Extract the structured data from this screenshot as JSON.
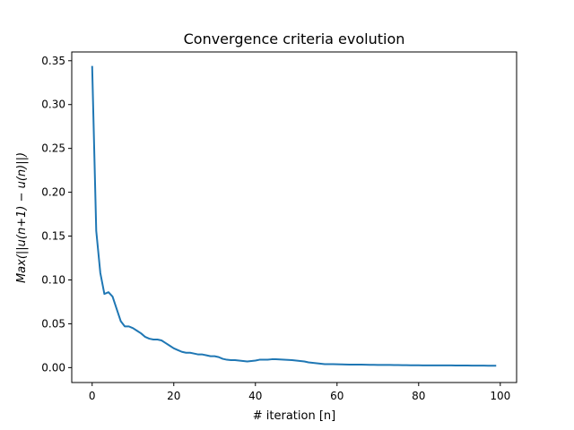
{
  "chart_data": {
    "type": "line",
    "title": "Convergence criteria evolution",
    "xlabel": "# iteration [n]",
    "ylabel": "Max(||u(n+1) − u(n)||)",
    "xlim": [
      -5,
      104
    ],
    "ylim": [
      -0.017,
      0.36
    ],
    "grid": false,
    "x_ticks": [
      0,
      20,
      40,
      60,
      80,
      100
    ],
    "x_tick_labels": [
      "0",
      "20",
      "40",
      "60",
      "80",
      "100"
    ],
    "y_ticks": [
      0.0,
      0.05,
      0.1,
      0.15,
      0.2,
      0.25,
      0.3,
      0.35
    ],
    "y_tick_labels": [
      "0.00",
      "0.05",
      "0.10",
      "0.15",
      "0.20",
      "0.25",
      "0.30",
      "0.35"
    ],
    "series": [
      {
        "color": "#1f77b4",
        "x": [
          0,
          1,
          2,
          3,
          4,
          5,
          6,
          7,
          8,
          9,
          10,
          11,
          12,
          13,
          14,
          15,
          16,
          17,
          18,
          19,
          20,
          21,
          22,
          23,
          24,
          25,
          26,
          27,
          28,
          29,
          30,
          31,
          32,
          33,
          34,
          35,
          36,
          37,
          38,
          39,
          40,
          41,
          42,
          43,
          44,
          45,
          46,
          47,
          48,
          49,
          50,
          51,
          52,
          53,
          54,
          55,
          56,
          57,
          58,
          59,
          60,
          61,
          62,
          63,
          64,
          65,
          66,
          67,
          68,
          69,
          70,
          71,
          72,
          73,
          74,
          75,
          76,
          77,
          78,
          79,
          80,
          81,
          82,
          83,
          84,
          85,
          86,
          87,
          88,
          89,
          90,
          91,
          92,
          93,
          94,
          95,
          96,
          97,
          98,
          99
        ],
        "y": [
          0.344,
          0.156,
          0.108,
          0.084,
          0.086,
          0.081,
          0.067,
          0.053,
          0.047,
          0.047,
          0.045,
          0.042,
          0.039,
          0.035,
          0.033,
          0.032,
          0.032,
          0.031,
          0.028,
          0.025,
          0.022,
          0.02,
          0.018,
          0.017,
          0.017,
          0.016,
          0.015,
          0.015,
          0.014,
          0.013,
          0.013,
          0.012,
          0.01,
          0.009,
          0.0085,
          0.0085,
          0.008,
          0.0075,
          0.007,
          0.0075,
          0.008,
          0.009,
          0.009,
          0.009,
          0.0095,
          0.0095,
          0.0093,
          0.009,
          0.0088,
          0.0085,
          0.008,
          0.0075,
          0.007,
          0.006,
          0.0055,
          0.005,
          0.0045,
          0.004,
          0.004,
          0.0039,
          0.0038,
          0.0037,
          0.0036,
          0.0035,
          0.0034,
          0.0034,
          0.0034,
          0.0033,
          0.0032,
          0.0032,
          0.0031,
          0.0031,
          0.003,
          0.003,
          0.0029,
          0.0029,
          0.0028,
          0.0028,
          0.0027,
          0.0027,
          0.0027,
          0.0026,
          0.0026,
          0.0026,
          0.0026,
          0.0025,
          0.0025,
          0.0025,
          0.0025,
          0.0024,
          0.0024,
          0.0024,
          0.0024,
          0.0023,
          0.0023,
          0.0023,
          0.0023,
          0.0022,
          0.0022,
          0.0022
        ]
      }
    ]
  }
}
